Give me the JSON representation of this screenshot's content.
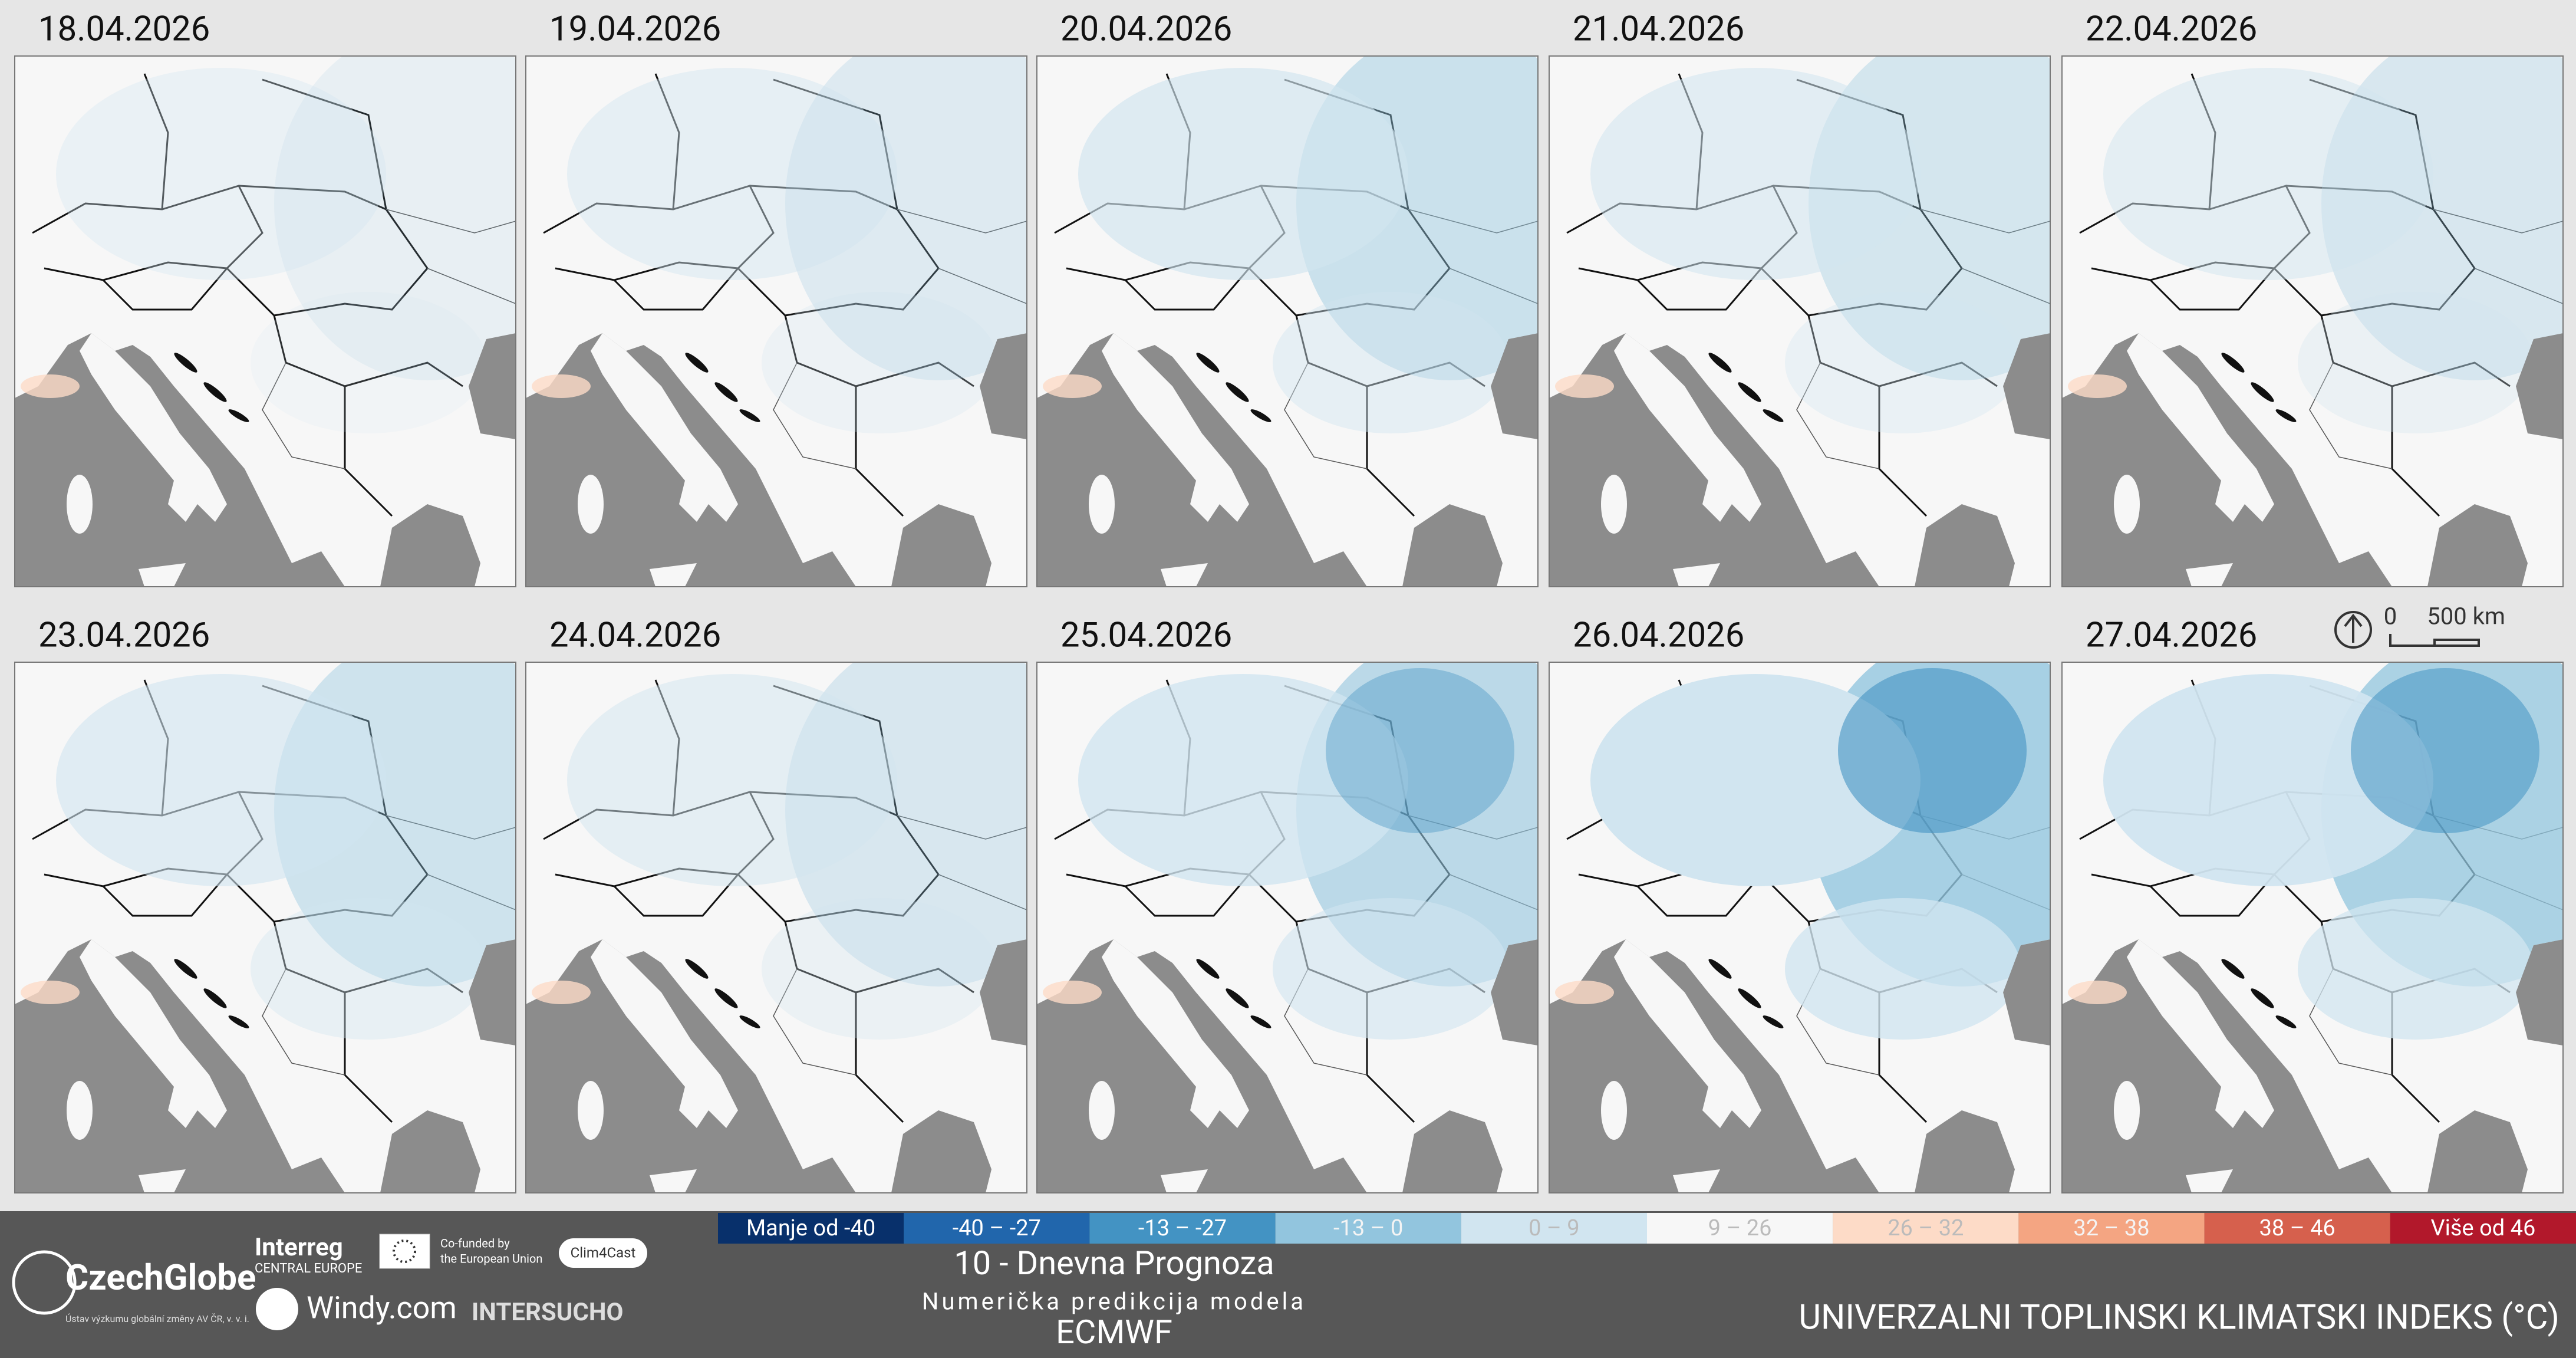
{
  "panels": [
    {
      "date": "18.04.2026"
    },
    {
      "date": "19.04.2026"
    },
    {
      "date": "20.04.2026"
    },
    {
      "date": "21.04.2026"
    },
    {
      "date": "22.04.2026"
    },
    {
      "date": "23.04.2026"
    },
    {
      "date": "24.04.2026"
    },
    {
      "date": "25.04.2026"
    },
    {
      "date": "26.04.2026"
    },
    {
      "date": "27.04.2026"
    }
  ],
  "scale": {
    "zero": "0",
    "distance": "500 km"
  },
  "legend": {
    "items": [
      {
        "label": "Manje od -40",
        "color": "#08306b"
      },
      {
        "label": "-40 – -27",
        "color": "#2166ac"
      },
      {
        "label": "-13 – -27",
        "color": "#4393c3"
      },
      {
        "label": "-13 – 0",
        "color": "#92c5de"
      },
      {
        "label": "0 – 9",
        "color": "#d1e5f0"
      },
      {
        "label": "9 – 26",
        "color": "#f7f7f7"
      },
      {
        "label": "26 – 32",
        "color": "#fddbc7"
      },
      {
        "label": "32 – 38",
        "color": "#f4a582"
      },
      {
        "label": "38 – 46",
        "color": "#d6604d"
      },
      {
        "label": "Više od 46",
        "color": "#b2182b"
      }
    ]
  },
  "logos": {
    "czechglobe": "CzechGlobe",
    "czechglobe_sub": "Ústav výzkumu globální změny AV ČR, v. v. i.",
    "interreg": "Interreg",
    "interreg_sub": "CENTRAL EUROPE",
    "eu_line1": "Co-funded by",
    "eu_line2": "the European Union",
    "clim4cast": "Clim4Cast",
    "windy": "Windy.com",
    "intersucho": "INTERSUCHO"
  },
  "footer": {
    "forecast": "10 - Dnevna Prognoza",
    "model_line": "Numerička predikcija modela",
    "model": "ECMWF",
    "title": "UNIVERZALNI TOPLINSKI KLIMATSKI INDEKS (°C)"
  }
}
